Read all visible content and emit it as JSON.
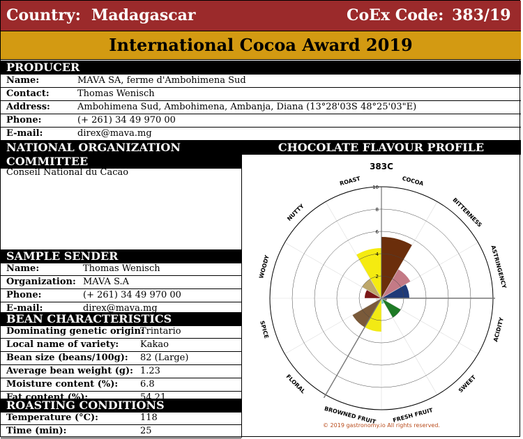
{
  "header": {
    "country_label": "Country:",
    "country": "Madagascar",
    "coex_label": "CoEx Code:",
    "coex_code": "383/19",
    "award_title": "International Cocoa Award 2019"
  },
  "producer": {
    "title": "PRODUCER",
    "rows": [
      {
        "key": "Name:",
        "value": "MAVA SA, ferme d'Ambohimena Sud"
      },
      {
        "key": "Contact:",
        "value": "Thomas Wenisch"
      },
      {
        "key": "Address:",
        "value": "Ambohimena Sud, Ambohimena, Ambanja, Diana (13°28'03S 48°25'03\"E)"
      },
      {
        "key": "Phone:",
        "value": "(+ 261) 34 49 970 00"
      },
      {
        "key": "E-mail:",
        "value": "direx@mava.mg"
      }
    ]
  },
  "noc": {
    "title": "NATIONAL ORGANIZATION COMMITTEE",
    "text": "Conseil National du Cacao"
  },
  "sample_sender": {
    "title": "SAMPLE SENDER",
    "rows": [
      {
        "key": "Name:",
        "value": "Thomas Wenisch"
      },
      {
        "key": "Organization:",
        "value": "MAVA S.A"
      },
      {
        "key": "Phone:",
        "value": "(+ 261) 34 49 970 00"
      },
      {
        "key": "E-mail:",
        "value": "direx@mava.mg"
      }
    ]
  },
  "bean": {
    "title": "BEAN CHARACTERISTICS",
    "rows": [
      {
        "key": "Dominating genetic origin:",
        "value": "Trintario"
      },
      {
        "key": "Local name of variety:",
        "value": "Kakao"
      },
      {
        "key": "Bean size (beans/100g):",
        "value": "82 (Large)"
      },
      {
        "key": "Average bean weight (g):",
        "value": "1.23"
      },
      {
        "key": "Moisture content (%):",
        "value": "6.8"
      },
      {
        "key": "Fat content (%):",
        "value": "54.21"
      }
    ]
  },
  "roasting": {
    "title": "ROASTING CONDITIONS",
    "rows": [
      {
        "key": "Temperature (°C):",
        "value": "118"
      },
      {
        "key": "Time (min):",
        "value": "25"
      }
    ]
  },
  "flavour": {
    "title": "CHOCOLATE FLAVOUR PROFILE",
    "copyright": "© 2019 gastronomy.io All rights reserved."
  },
  "colors": {
    "top_bar": "#9b2a2b",
    "award_bar": "#d39a12",
    "section_bar": "#000000"
  },
  "chart_data": {
    "type": "polar-area",
    "title": "383C",
    "rmax": 10,
    "rticks": [
      2,
      4,
      6,
      8,
      10
    ],
    "categories": [
      {
        "label": "COCOA",
        "value": 5.5,
        "color": "#6b2e0b"
      },
      {
        "label": "BITTERNESS",
        "value": 3.0,
        "color": "#c47a86"
      },
      {
        "label": "ASTRINGENCY",
        "value": 2.5,
        "color": "#1f3a78"
      },
      {
        "label": "ACIDITY",
        "value": 0.5,
        "color": "#7f7f7f"
      },
      {
        "label": "SWEET",
        "value": 2.0,
        "color": "#1e7a25"
      },
      {
        "label": "FRESH FRUIT",
        "value": 0.5,
        "color": "#6fc7b8"
      },
      {
        "label": "BROWNED FRUIT",
        "value": 3.0,
        "color": "#f2ea14"
      },
      {
        "label": "FLORAL",
        "value": 3.0,
        "color": "#7a5a3a"
      },
      {
        "label": "SPICE",
        "value": 0.5,
        "color": "#d8d8d8"
      },
      {
        "label": "WOODY",
        "value": 1.5,
        "color": "#7a1616"
      },
      {
        "label": "NUTTY",
        "value": 2.0,
        "color": "#bda76b"
      },
      {
        "label": "ROAST",
        "value": 4.5,
        "color": "#f5eb10"
      }
    ]
  }
}
